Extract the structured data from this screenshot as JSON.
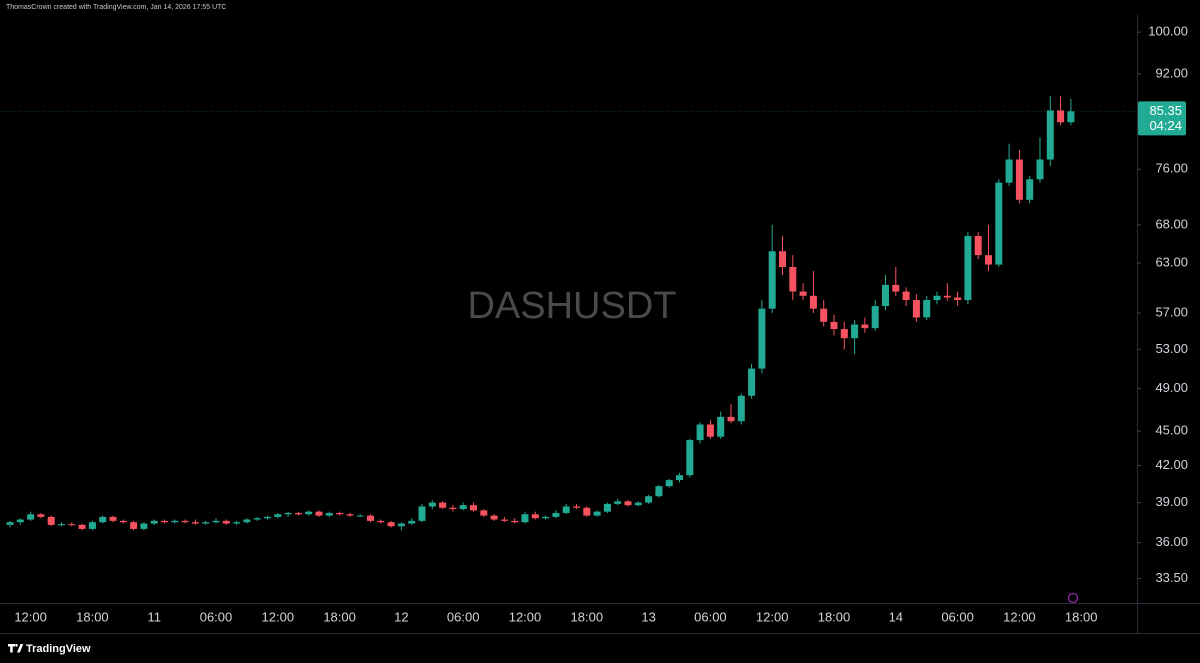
{
  "header": {
    "caption": "ThomasCrown created with TradingView.com, Jan 14, 2026 17:55 UTC"
  },
  "footer": {
    "brand": "TradingView"
  },
  "chart_data": {
    "type": "candlestick",
    "watermark": "DASHUSDT",
    "log_scale": true,
    "grid": false,
    "up_color": "#22ab94",
    "down_color": "#f7525f",
    "countdown": "04:24",
    "categories": [
      null,
      null,
      "12:00",
      null,
      null,
      null,
      null,
      null,
      "18:00",
      null,
      null,
      null,
      null,
      null,
      "11",
      null,
      null,
      null,
      null,
      null,
      "06:00",
      null,
      null,
      null,
      null,
      null,
      "12:00",
      null,
      null,
      null,
      null,
      null,
      "18:00",
      null,
      null,
      null,
      null,
      null,
      "12",
      null,
      null,
      null,
      null,
      null,
      "06:00",
      null,
      null,
      null,
      null,
      null,
      "12:00",
      null,
      null,
      null,
      null,
      null,
      "18:00",
      null,
      null,
      null,
      null,
      null,
      "13",
      null,
      null,
      null,
      null,
      null,
      "06:00",
      null,
      null,
      null,
      null,
      null,
      "12:00",
      null,
      null,
      null,
      null,
      null,
      "18:00",
      null,
      null,
      null,
      null,
      null,
      "14",
      null,
      null,
      null,
      null,
      null,
      "06:00",
      null,
      null,
      null,
      null,
      null,
      "12:00",
      null,
      null,
      null,
      null,
      null,
      "18:00"
    ],
    "open": [
      37.3,
      37.5,
      37.7,
      38.1,
      37.9,
      37.3,
      37.35,
      37.3,
      37.0,
      37.5,
      37.9,
      37.6,
      37.5,
      37.0,
      37.4,
      37.6,
      37.5,
      37.6,
      37.5,
      37.4,
      37.5,
      37.6,
      37.4,
      37.5,
      37.7,
      37.8,
      37.9,
      38.1,
      38.2,
      38.1,
      38.3,
      38.0,
      38.2,
      38.1,
      38.0,
      38.0,
      37.6,
      37.5,
      37.2,
      37.4,
      37.6,
      38.7,
      39.0,
      38.6,
      38.5,
      38.8,
      38.4,
      38.0,
      37.7,
      37.6,
      37.5,
      38.1,
      37.8,
      37.9,
      38.2,
      38.7,
      38.6,
      38.0,
      38.3,
      38.9,
      39.1,
      38.8,
      39.0,
      39.5,
      40.3,
      40.8,
      41.2,
      44.2,
      45.6,
      44.5,
      46.3,
      45.9,
      48.3,
      51.0,
      57.5,
      64.5,
      62.5,
      59.5,
      59.0,
      57.5,
      56.0,
      55.2,
      54.2,
      55.7,
      55.3,
      57.8,
      60.3,
      59.5,
      58.5,
      56.5,
      58.5,
      59.0,
      58.8,
      58.5,
      66.5,
      64.0,
      62.8,
      74.0,
      77.5,
      71.5,
      74.5,
      77.5,
      85.5,
      83.5,
      null
    ],
    "high": [
      37.6,
      37.8,
      38.3,
      38.2,
      38.0,
      37.5,
      37.5,
      37.4,
      37.6,
      38.0,
      38.0,
      37.7,
      37.6,
      37.5,
      37.7,
      37.7,
      37.7,
      37.7,
      37.7,
      37.6,
      37.8,
      37.7,
      37.6,
      37.8,
      37.9,
      38.0,
      38.2,
      38.3,
      38.3,
      38.4,
      38.4,
      38.3,
      38.3,
      38.2,
      38.1,
      38.1,
      37.7,
      37.6,
      37.5,
      37.8,
      38.9,
      39.2,
      39.1,
      38.8,
      39.0,
      39.0,
      38.5,
      38.1,
      37.9,
      37.8,
      38.3,
      38.3,
      38.0,
      38.4,
      38.9,
      38.9,
      38.7,
      38.4,
      39.0,
      39.3,
      39.2,
      39.1,
      39.6,
      40.4,
      40.9,
      41.4,
      44.3,
      45.8,
      46.0,
      46.8,
      47.5,
      48.5,
      51.5,
      58.5,
      68.0,
      66.5,
      64.0,
      60.5,
      62.0,
      58.5,
      56.8,
      56.0,
      56.2,
      56.5,
      58.5,
      61.5,
      62.5,
      60.0,
      59.2,
      59.0,
      59.5,
      60.5,
      59.5,
      67.0,
      67.0,
      68.0,
      74.5,
      80.0,
      79.0,
      75.0,
      81.0,
      88.0,
      88.0,
      87.5,
      null
    ],
    "low": [
      37.1,
      37.3,
      37.6,
      37.8,
      37.2,
      37.2,
      37.2,
      36.9,
      36.9,
      37.4,
      37.5,
      37.4,
      36.9,
      36.9,
      37.3,
      37.4,
      37.4,
      37.4,
      37.3,
      37.3,
      37.4,
      37.3,
      37.3,
      37.4,
      37.6,
      37.7,
      37.8,
      37.9,
      38.0,
      38.0,
      37.9,
      37.9,
      38.0,
      37.9,
      37.9,
      37.5,
      37.4,
      37.1,
      36.9,
      37.3,
      37.5,
      38.5,
      38.5,
      38.3,
      38.4,
      38.3,
      37.9,
      37.6,
      37.5,
      37.4,
      37.4,
      37.7,
      37.7,
      37.8,
      38.1,
      38.5,
      37.9,
      37.9,
      38.2,
      38.8,
      38.7,
      38.7,
      38.9,
      39.4,
      40.2,
      40.6,
      41.0,
      43.9,
      44.3,
      44.3,
      45.7,
      45.6,
      48.0,
      50.5,
      57.0,
      61.5,
      58.5,
      58.5,
      57.0,
      55.5,
      54.5,
      53.0,
      52.5,
      54.8,
      55.0,
      57.3,
      59.0,
      57.8,
      56.0,
      56.2,
      58.0,
      58.4,
      57.8,
      58.0,
      63.5,
      62.0,
      62.5,
      73.5,
      71.0,
      71.0,
      74.0,
      76.5,
      83.0,
      83.0,
      null
    ],
    "close": [
      37.5,
      37.7,
      38.1,
      37.9,
      37.3,
      37.35,
      37.3,
      37.0,
      37.5,
      37.9,
      37.6,
      37.5,
      37.0,
      37.4,
      37.6,
      37.5,
      37.6,
      37.5,
      37.4,
      37.5,
      37.6,
      37.4,
      37.5,
      37.7,
      37.8,
      37.9,
      38.1,
      38.2,
      38.1,
      38.3,
      38.0,
      38.2,
      38.1,
      38.0,
      38.0,
      37.6,
      37.5,
      37.2,
      37.4,
      37.6,
      38.7,
      39.0,
      38.6,
      38.5,
      38.8,
      38.4,
      38.0,
      37.7,
      37.6,
      37.5,
      38.1,
      37.8,
      37.9,
      38.2,
      38.7,
      38.6,
      38.0,
      38.3,
      38.9,
      39.1,
      38.8,
      39.0,
      39.5,
      40.3,
      40.8,
      41.2,
      44.2,
      45.6,
      44.5,
      46.3,
      45.9,
      48.3,
      51.0,
      57.5,
      64.5,
      62.5,
      59.5,
      59.0,
      57.5,
      56.0,
      55.2,
      54.2,
      55.7,
      55.3,
      57.8,
      60.3,
      59.5,
      58.5,
      56.5,
      58.5,
      59.0,
      58.8,
      58.5,
      66.5,
      64.0,
      62.8,
      74.0,
      77.5,
      71.5,
      74.5,
      77.5,
      85.5,
      83.5,
      85.35,
      null
    ],
    "ylim": [
      31.9,
      103.5
    ],
    "yticks": [
      {
        "value": 33.5,
        "label": "33.50"
      },
      {
        "value": 36,
        "label": "36.00"
      },
      {
        "value": 39,
        "label": "39.00"
      },
      {
        "value": 42,
        "label": "42.00"
      },
      {
        "value": 45,
        "label": "45.00"
      },
      {
        "value": 49,
        "label": "49.00"
      },
      {
        "value": 53,
        "label": "53.00"
      },
      {
        "value": 57,
        "label": "57.00"
      },
      {
        "value": 63,
        "label": "63.00"
      },
      {
        "value": 68,
        "label": "68.00"
      },
      {
        "value": 76,
        "label": "76.00"
      },
      {
        "value": 92,
        "label": "92.00"
      },
      {
        "value": 100,
        "label": "100.00"
      }
    ]
  }
}
